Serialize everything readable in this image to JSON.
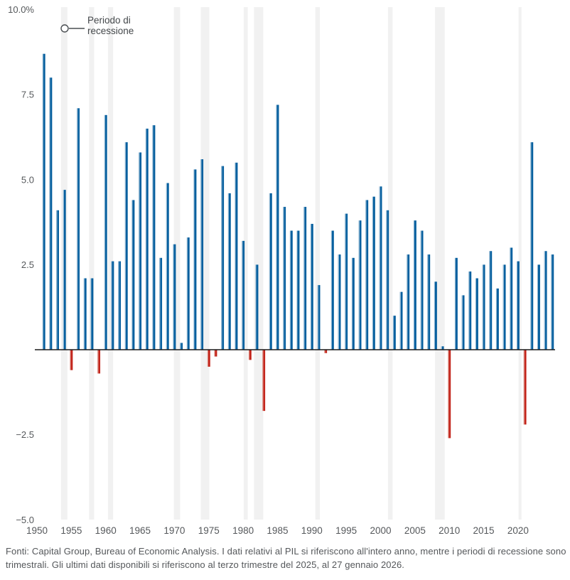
{
  "chart_data": {
    "type": "bar",
    "title": "",
    "ylabel": "",
    "xlabel": "",
    "unit": "%",
    "ylim": [
      -5,
      10
    ],
    "grid": false,
    "years": [
      1950,
      1951,
      1952,
      1953,
      1954,
      1955,
      1956,
      1957,
      1958,
      1959,
      1960,
      1961,
      1962,
      1963,
      1964,
      1965,
      1966,
      1967,
      1968,
      1969,
      1970,
      1971,
      1972,
      1973,
      1974,
      1975,
      1976,
      1977,
      1978,
      1979,
      1980,
      1981,
      1982,
      1983,
      1984,
      1985,
      1986,
      1987,
      1988,
      1989,
      1990,
      1991,
      1992,
      1993,
      1994,
      1995,
      1996,
      1997,
      1998,
      1999,
      2000,
      2001,
      2002,
      2003,
      2004,
      2005,
      2006,
      2007,
      2008,
      2009,
      2010,
      2011,
      2012,
      2013,
      2014,
      2015,
      2016,
      2017,
      2018,
      2019,
      2020,
      2021,
      2022,
      2023,
      2024
    ],
    "values": [
      8.7,
      8.0,
      4.1,
      4.7,
      -0.6,
      7.1,
      2.1,
      2.1,
      -0.7,
      6.9,
      2.6,
      2.6,
      6.1,
      4.4,
      5.8,
      6.5,
      6.6,
      2.7,
      4.9,
      3.1,
      0.2,
      3.3,
      5.3,
      5.6,
      -0.5,
      -0.2,
      5.4,
      4.6,
      5.5,
      3.2,
      -0.3,
      2.5,
      -1.8,
      4.6,
      7.2,
      4.2,
      3.5,
      3.5,
      4.2,
      3.7,
      1.9,
      -0.1,
      3.5,
      2.8,
      4.0,
      2.7,
      3.8,
      4.4,
      4.5,
      4.8,
      4.1,
      1.0,
      1.7,
      2.8,
      3.8,
      3.5,
      2.8,
      2.0,
      0.1,
      -2.6,
      2.7,
      1.6,
      2.3,
      2.1,
      2.5,
      2.9,
      1.8,
      2.5,
      3.0,
      2.6,
      -2.2,
      6.1,
      2.5,
      2.9,
      2.8
    ],
    "x_axis": {
      "tick_years": [
        1950,
        1955,
        1960,
        1965,
        1970,
        1975,
        1980,
        1985,
        1990,
        1995,
        2000,
        2005,
        2010,
        2015,
        2020
      ]
    },
    "y_axis": {
      "ticks": [
        {
          "label": "10.0%",
          "value": 10
        },
        {
          "label": "7.5",
          "value": 7.5
        },
        {
          "label": "5.0",
          "value": 5
        },
        {
          "label": "2.5",
          "value": 2.5
        },
        {
          "label": "−2.5",
          "value": -2.5
        },
        {
          "label": "−5.0",
          "value": -5
        }
      ]
    },
    "recession_periods": [
      {
        "start": 1953.5,
        "end": 1954.42
      },
      {
        "start": 1957.58,
        "end": 1958.33
      },
      {
        "start": 1960.33,
        "end": 1961.08
      },
      {
        "start": 1969.92,
        "end": 1970.83
      },
      {
        "start": 1973.83,
        "end": 1975.08
      },
      {
        "start": 1980.08,
        "end": 1980.67
      },
      {
        "start": 1981.58,
        "end": 1982.92
      },
      {
        "start": 1990.5,
        "end": 1991.17
      },
      {
        "start": 2001.08,
        "end": 2001.75
      },
      {
        "start": 2007.92,
        "end": 2009.33
      },
      {
        "start": 2020.08,
        "end": 2020.5
      }
    ],
    "legend": {
      "lines": [
        "Periodo di",
        "recessione"
      ],
      "marker": "open-circle"
    },
    "colors": {
      "positive": "#07609F",
      "positive_light": "#8FB6D2",
      "negative": "#C3251B",
      "negative_light": "#DD958C",
      "recession_band": "#F1F1F1",
      "axis_line": "#1A1A1A",
      "tick_label": "#55585B",
      "legend_text": "#44484B",
      "legend_marker": "#4A4E52"
    }
  },
  "footer": {
    "text": "Fonti: Capital Group, Bureau of Economic Analysis. I dati relativi al PIL si riferiscono all'intero anno, mentre i periodi di recessione sono trimestrali. Gli ultimi dati disponibili si riferiscono al terzo trimestre del 2025, al 27 gennaio 2026."
  }
}
